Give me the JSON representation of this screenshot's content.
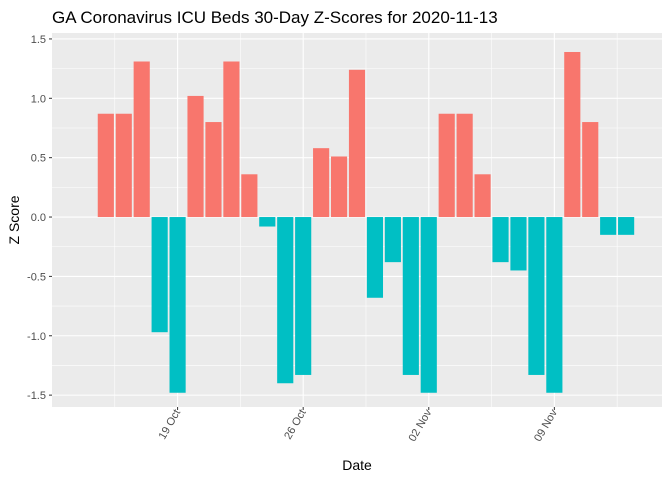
{
  "chart_data": {
    "type": "bar",
    "title": "GA Coronavirus ICU Beds 30-Day Z-Scores for 2020-11-13",
    "xlabel": "Date",
    "ylabel": "Z Score",
    "ylim": [
      -1.6,
      1.55
    ],
    "yticks": [
      -1.5,
      -1.0,
      -0.5,
      0.0,
      0.5,
      1.0,
      1.5
    ],
    "ytick_labels": [
      "-1.5",
      "-1.0",
      "-0.5",
      "0.0",
      "0.5",
      "1.0",
      "1.5"
    ],
    "xlim": [
      "2020-10-12",
      "2020-11-15"
    ],
    "xticks": [
      {
        "date": "2020-10-19",
        "label": "19 Oct"
      },
      {
        "date": "2020-10-26",
        "label": "26 Oct"
      },
      {
        "date": "2020-11-02",
        "label": "02 Nov"
      },
      {
        "date": "2020-11-09",
        "label": "09 Nov"
      }
    ],
    "grid": true,
    "legend": "none",
    "colors": {
      "positive": "#F8766D",
      "negative": "#00BFC4",
      "panel": "#EBEBEB",
      "grid": "#FFFFFF"
    },
    "x": [
      "2020-10-15",
      "2020-10-16",
      "2020-10-17",
      "2020-10-18",
      "2020-10-19",
      "2020-10-20",
      "2020-10-21",
      "2020-10-22",
      "2020-10-23",
      "2020-10-24",
      "2020-10-25",
      "2020-10-26",
      "2020-10-27",
      "2020-10-28",
      "2020-10-29",
      "2020-10-30",
      "2020-10-31",
      "2020-11-01",
      "2020-11-02",
      "2020-11-03",
      "2020-11-04",
      "2020-11-05",
      "2020-11-06",
      "2020-11-07",
      "2020-11-08",
      "2020-11-09",
      "2020-11-10",
      "2020-11-11",
      "2020-11-12",
      "2020-11-13"
    ],
    "values": [
      0.87,
      0.87,
      1.31,
      -0.97,
      -1.48,
      1.02,
      0.8,
      1.31,
      0.36,
      -0.08,
      -1.4,
      -1.33,
      0.58,
      0.51,
      1.24,
      -0.68,
      -0.38,
      -1.33,
      -1.48,
      0.87,
      0.87,
      0.36,
      -0.38,
      -0.45,
      -1.33,
      -1.48,
      1.39,
      0.8,
      -0.15,
      -0.15
    ]
  }
}
